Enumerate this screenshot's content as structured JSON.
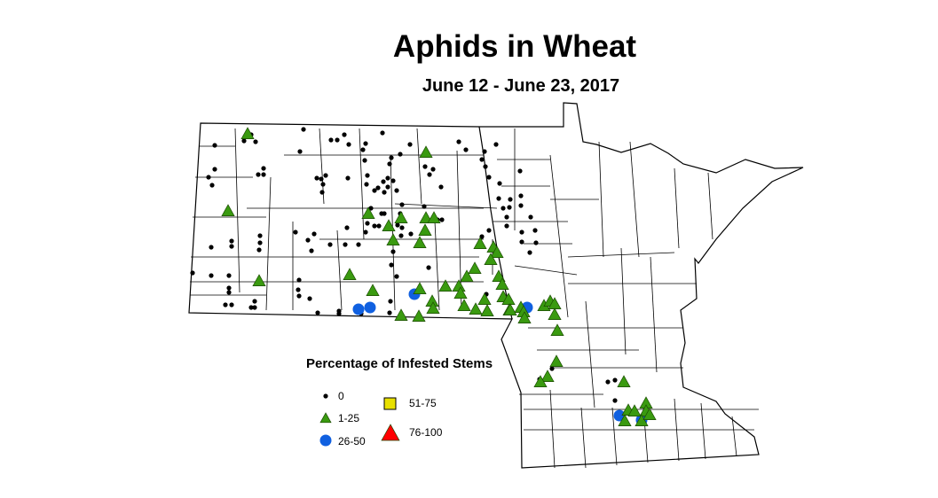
{
  "title": "Aphids in Wheat",
  "subtitle": "June 12 - June 23, 2017",
  "legend": {
    "title": "Percentage of Infested Stems",
    "items": [
      {
        "label": "0",
        "symbol": "small-dot",
        "color": "#000000"
      },
      {
        "label": "1-25",
        "symbol": "triangle",
        "color": "#3a9a10"
      },
      {
        "label": "26-50",
        "symbol": "circle",
        "color": "#1060e0"
      },
      {
        "label": "51-75",
        "symbol": "square",
        "color": "#e8e000"
      },
      {
        "label": "76-100",
        "symbol": "large-triangle",
        "color": "#ff0000"
      }
    ]
  },
  "regions": [
    "North Dakota",
    "Minnesota"
  ]
}
